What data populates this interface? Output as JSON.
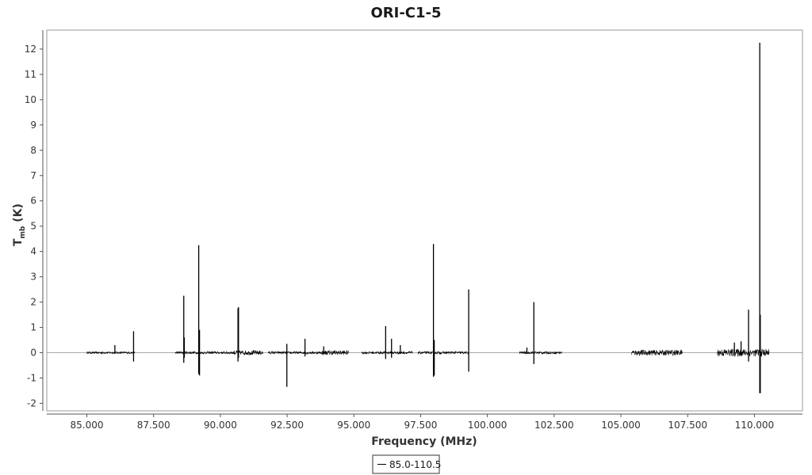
{
  "chart_data": {
    "type": "line",
    "title": "ORI-C1-5",
    "xlabel": "Frequency (MHz)",
    "ylabel_main": "T",
    "ylabel_sub": "mb",
    "ylabel_unit": " (K)",
    "xlim": [
      83.5,
      111.8
    ],
    "ylim": [
      -2.3,
      12.75
    ],
    "xticks": [
      85,
      87.5,
      90,
      92.5,
      95,
      97.5,
      100,
      102.5,
      105,
      107.5,
      110
    ],
    "xtick_labels": [
      "85.000",
      "87.500",
      "90.000",
      "92.500",
      "95.000",
      "97.500",
      "100.000",
      "102.500",
      "105.000",
      "107.500",
      "110.000"
    ],
    "yticks": [
      -2,
      -1,
      0,
      1,
      2,
      3,
      4,
      5,
      6,
      7,
      8,
      9,
      10,
      11,
      12
    ],
    "ytick_labels": [
      "-2",
      "-1",
      "0",
      "1",
      "2",
      "3",
      "4",
      "5",
      "6",
      "7",
      "8",
      "9",
      "10",
      "11",
      "12"
    ],
    "grid": false,
    "legend_position": "bottom",
    "series": [
      {
        "name": "85.0-110.5",
        "color": "#000000",
        "coverage": [
          [
            85.0,
            86.8
          ],
          [
            88.3,
            91.6
          ],
          [
            91.8,
            94.8
          ],
          [
            95.3,
            97.2
          ],
          [
            97.4,
            99.3
          ],
          [
            101.2,
            102.8
          ],
          [
            105.4,
            107.3
          ],
          [
            108.6,
            110.55
          ]
        ],
        "noise": [
          [
            85.0,
            86.8,
            0.04
          ],
          [
            88.3,
            90.5,
            0.05
          ],
          [
            90.5,
            91.6,
            0.09
          ],
          [
            91.8,
            93.8,
            0.05
          ],
          [
            93.8,
            94.8,
            0.09
          ],
          [
            95.3,
            97.2,
            0.05
          ],
          [
            97.4,
            99.3,
            0.05
          ],
          [
            101.2,
            102.8,
            0.05
          ],
          [
            105.4,
            107.3,
            0.11
          ],
          [
            108.6,
            110.55,
            0.15
          ]
        ],
        "lines": [
          {
            "x": 86.05,
            "peak": 0.3,
            "min": -0.05
          },
          {
            "x": 86.75,
            "peak": 0.85,
            "min": -0.35
          },
          {
            "x": 88.63,
            "peak": 2.25,
            "min": -0.4
          },
          {
            "x": 88.65,
            "peak": 0.6,
            "min": -0.2
          },
          {
            "x": 89.19,
            "peak": 4.25,
            "min": -0.85
          },
          {
            "x": 89.22,
            "peak": 0.9,
            "min": -0.9
          },
          {
            "x": 90.66,
            "peak": 1.75,
            "min": -0.35
          },
          {
            "x": 90.68,
            "peak": 1.8,
            "min": -0.2
          },
          {
            "x": 92.49,
            "peak": 0.35,
            "min": -1.35
          },
          {
            "x": 93.17,
            "peak": 0.55,
            "min": -0.15
          },
          {
            "x": 93.87,
            "peak": 0.25,
            "min": -0.05
          },
          {
            "x": 96.19,
            "peak": 1.05,
            "min": -0.25
          },
          {
            "x": 96.41,
            "peak": 0.55,
            "min": -0.2
          },
          {
            "x": 96.74,
            "peak": 0.3,
            "min": -0.05
          },
          {
            "x": 97.98,
            "peak": 4.3,
            "min": -0.95
          },
          {
            "x": 98.01,
            "peak": 0.5,
            "min": -0.9
          },
          {
            "x": 99.3,
            "peak": 2.5,
            "min": -0.75
          },
          {
            "x": 101.48,
            "peak": 0.2,
            "min": -0.05
          },
          {
            "x": 101.74,
            "peak": 2.0,
            "min": -0.45
          },
          {
            "x": 109.25,
            "peak": 0.4,
            "min": -0.1
          },
          {
            "x": 109.5,
            "peak": 0.45,
            "min": -0.1
          },
          {
            "x": 109.78,
            "peak": 1.7,
            "min": -0.35
          },
          {
            "x": 110.2,
            "peak": 12.25,
            "min": -1.6
          },
          {
            "x": 110.22,
            "peak": 1.5,
            "min": -1.6
          }
        ]
      }
    ]
  }
}
